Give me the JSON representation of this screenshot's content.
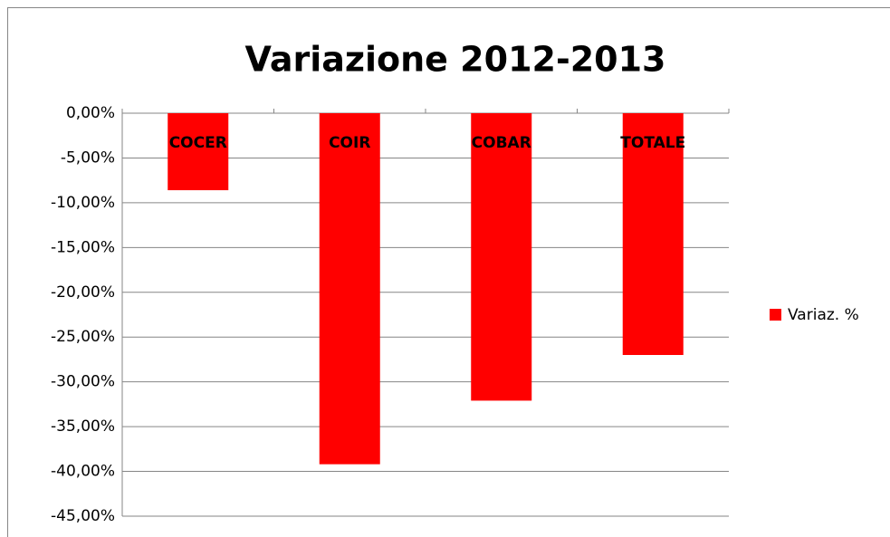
{
  "chart_data": {
    "type": "bar",
    "title": "Variazione 2012-2013",
    "categories": [
      "COCER",
      "COIR",
      "COBAR",
      "TOTALE"
    ],
    "series": [
      {
        "name": "Variaz. %",
        "color": "#ff0000",
        "values": [
          -8.6,
          -39.2,
          -32.1,
          -27.0
        ]
      }
    ],
    "ylim": [
      -45,
      0
    ],
    "yticks": [
      {
        "value": 0,
        "label": "0,00%"
      },
      {
        "value": -5,
        "label": "-5,00%"
      },
      {
        "value": -10,
        "label": "-10,00%"
      },
      {
        "value": -15,
        "label": "-15,00%"
      },
      {
        "value": -20,
        "label": "-20,00%"
      },
      {
        "value": -25,
        "label": "-25,00%"
      },
      {
        "value": -30,
        "label": "-30,00%"
      },
      {
        "value": -35,
        "label": "-35,00%"
      },
      {
        "value": -40,
        "label": "-40,00%"
      },
      {
        "value": -45,
        "label": "-45,00%"
      }
    ],
    "grid": true,
    "legend": "right"
  }
}
